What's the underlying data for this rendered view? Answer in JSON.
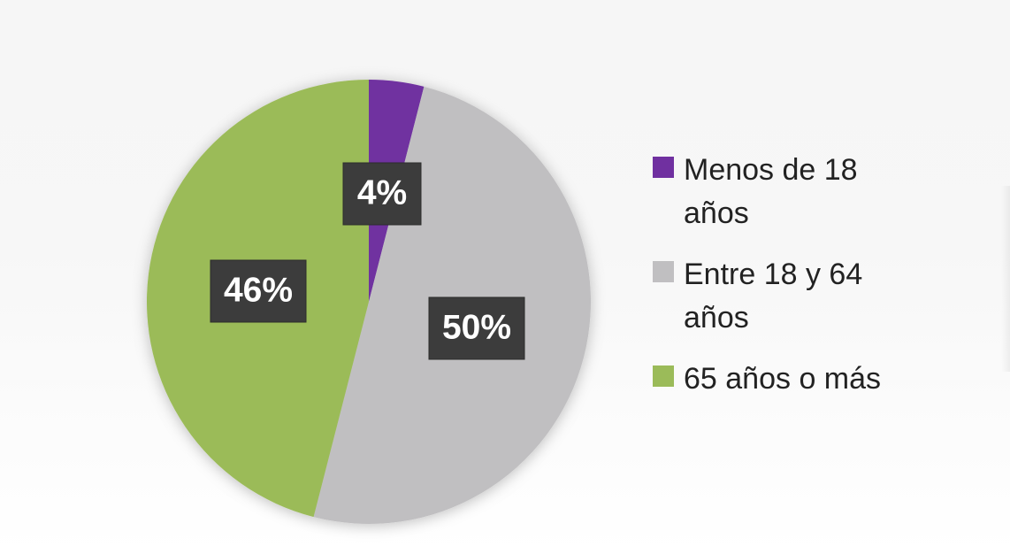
{
  "chart_data": {
    "type": "pie",
    "title": "",
    "legend_position": "right",
    "categories": [
      "Menos de 18 años",
      "Entre 18 y 64 años",
      "65 años o más"
    ],
    "values": [
      4,
      50,
      46
    ],
    "data_labels": [
      "4%",
      "50%",
      "46%"
    ],
    "colors": [
      "#7030a0",
      "#c0bfc1",
      "#9bbb59"
    ],
    "start_angle": "12 o'clock",
    "direction": "clockwise"
  }
}
